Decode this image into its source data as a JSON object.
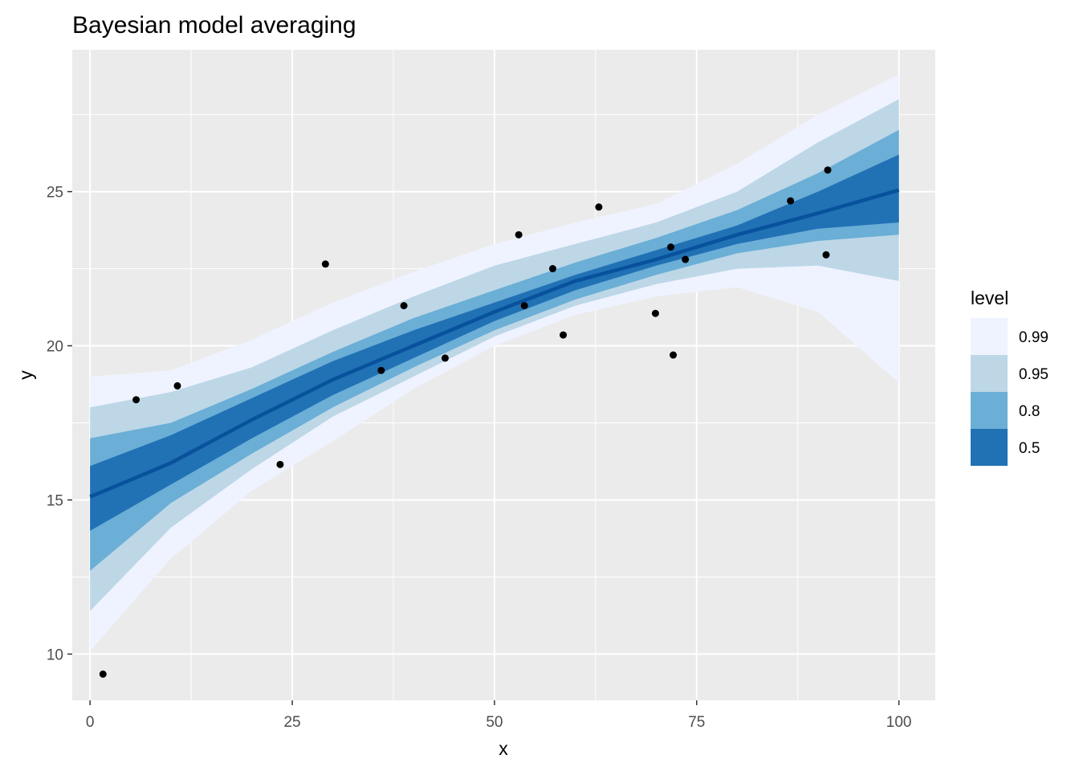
{
  "chart_data": {
    "type": "area",
    "title": "Bayesian model averaging",
    "xlabel": "x",
    "ylabel": "y",
    "xlim": [
      -2.2,
      104.5
    ],
    "ylim": [
      8.5,
      29.6
    ],
    "xticks": [
      0,
      25,
      50,
      75,
      100
    ],
    "yticks": [
      10,
      15,
      20,
      25
    ],
    "x_tick_labels": [
      "0",
      "25",
      "50",
      "75",
      "100"
    ],
    "y_tick_labels": [
      "10",
      "15",
      "20",
      "25"
    ],
    "grid": true,
    "background": "#ebebeb",
    "legend": {
      "title": "level",
      "position": "right",
      "entries": [
        {
          "label": "0.99",
          "color": "#eff3ff"
        },
        {
          "label": "0.95",
          "color": "#bdd7e7"
        },
        {
          "label": "0.8",
          "color": "#6baed6"
        },
        {
          "label": "0.5",
          "color": "#2171b5"
        }
      ]
    },
    "line_color": "#08519c",
    "fit_x": [
      0,
      10,
      20,
      30,
      40,
      50,
      60,
      70,
      80,
      90,
      100
    ],
    "fit_y": [
      15.1,
      16.2,
      17.6,
      18.9,
      20.0,
      21.1,
      22.1,
      22.8,
      23.6,
      24.3,
      25.05
    ],
    "bands": [
      {
        "level": "0.99",
        "color": "#eff3ff",
        "lower": [
          10.1,
          13.1,
          15.3,
          16.9,
          18.6,
          20.0,
          21.0,
          21.6,
          21.9,
          21.1,
          18.8
        ],
        "upper": [
          19.0,
          19.2,
          20.2,
          21.4,
          22.4,
          23.3,
          24.0,
          24.6,
          25.9,
          27.5,
          28.8
        ]
      },
      {
        "level": "0.95",
        "color": "#bdd7e7",
        "lower": [
          11.4,
          14.1,
          16.0,
          17.7,
          19.0,
          20.3,
          21.3,
          22.0,
          22.5,
          22.6,
          22.1
        ],
        "upper": [
          18.0,
          18.5,
          19.3,
          20.5,
          21.6,
          22.6,
          23.3,
          24.0,
          25.0,
          26.6,
          28.0
        ]
      },
      {
        "level": "0.8",
        "color": "#6baed6",
        "lower": [
          12.7,
          14.9,
          16.5,
          18.0,
          19.3,
          20.5,
          21.5,
          22.3,
          23.0,
          23.4,
          23.6
        ],
        "upper": [
          17.0,
          17.5,
          18.6,
          19.8,
          20.9,
          21.8,
          22.7,
          23.5,
          24.4,
          25.6,
          27.0
        ]
      },
      {
        "level": "0.5",
        "color": "#2171b5",
        "lower": [
          14.0,
          15.5,
          17.0,
          18.4,
          19.6,
          20.8,
          21.8,
          22.6,
          23.3,
          23.8,
          24.0
        ],
        "upper": [
          16.1,
          17.1,
          18.3,
          19.5,
          20.5,
          21.4,
          22.3,
          23.1,
          23.9,
          25.0,
          26.2
        ]
      }
    ],
    "points": [
      {
        "x": 1.6,
        "y": 9.35
      },
      {
        "x": 5.7,
        "y": 18.25
      },
      {
        "x": 10.8,
        "y": 18.7
      },
      {
        "x": 23.5,
        "y": 16.15
      },
      {
        "x": 29.1,
        "y": 22.65
      },
      {
        "x": 36.0,
        "y": 19.2
      },
      {
        "x": 38.8,
        "y": 21.3
      },
      {
        "x": 43.9,
        "y": 19.6
      },
      {
        "x": 53.0,
        "y": 23.6
      },
      {
        "x": 53.7,
        "y": 21.3
      },
      {
        "x": 57.2,
        "y": 22.5
      },
      {
        "x": 58.5,
        "y": 20.35
      },
      {
        "x": 62.9,
        "y": 24.5
      },
      {
        "x": 69.9,
        "y": 21.05
      },
      {
        "x": 71.8,
        "y": 23.2
      },
      {
        "x": 72.1,
        "y": 19.7
      },
      {
        "x": 73.6,
        "y": 22.8
      },
      {
        "x": 86.6,
        "y": 24.7
      },
      {
        "x": 91.0,
        "y": 22.95
      },
      {
        "x": 91.2,
        "y": 25.7
      }
    ]
  }
}
